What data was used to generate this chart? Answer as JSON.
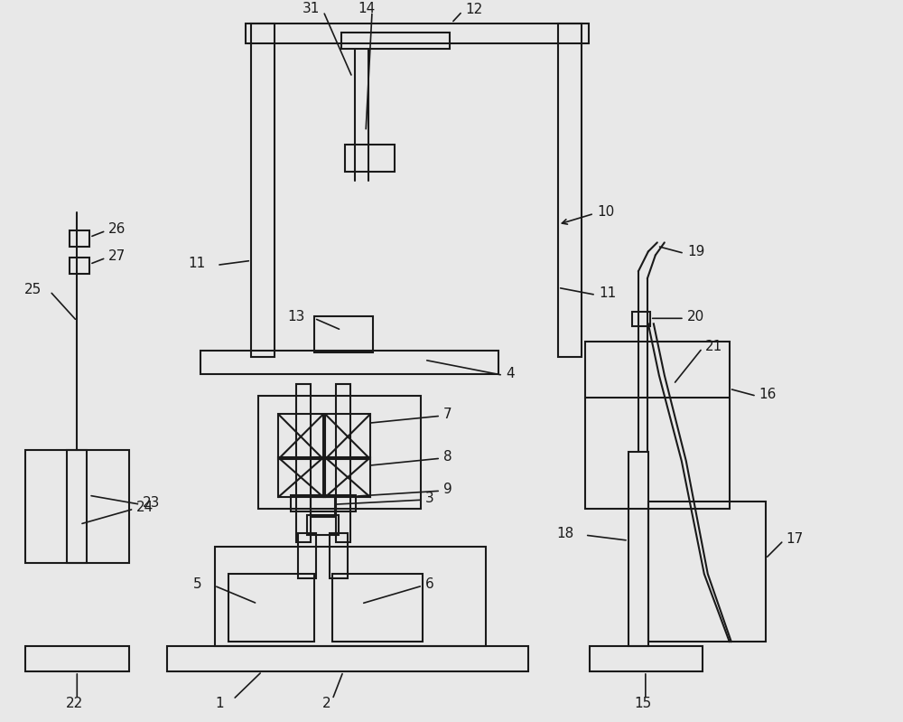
{
  "bg_color": "#e8e8e8",
  "line_color": "#1a1a1a",
  "line_width": 1.5,
  "fig_width": 10.0,
  "fig_height": 7.99,
  "dpi": 100
}
